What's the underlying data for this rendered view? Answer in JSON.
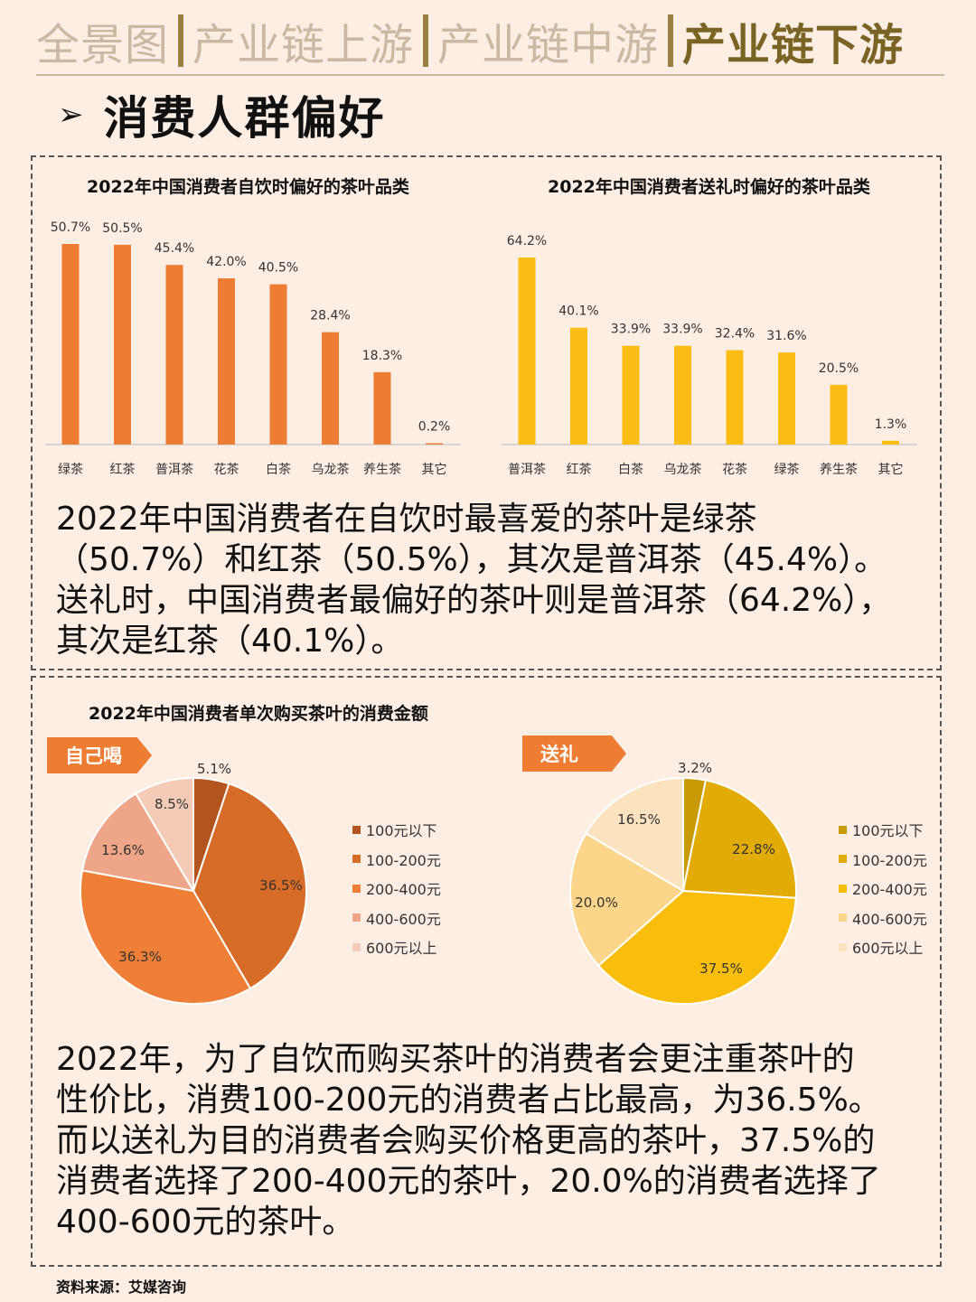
{
  "nav": {
    "tabs": [
      "全景图",
      "产业链上游",
      "产业链中游",
      "产业链下游"
    ],
    "active_index": 3
  },
  "section": {
    "title": "消费人群偏好",
    "arrow": "➢"
  },
  "colors": {
    "bar_left": "#ee7c33",
    "bar_right": "#fbbd14",
    "pie_left": [
      "#b3541e",
      "#d76c28",
      "#ef7f36",
      "#efa688",
      "#f4cbb6"
    ],
    "pie_right": [
      "#c89a06",
      "#e3ab06",
      "#f9be0c",
      "#fbd58a",
      "#fce3bf"
    ],
    "tag_left": "#ee7c33",
    "tag_right": "#ee7c33"
  },
  "chart_data": [
    {
      "type": "bar",
      "title": "2022年中国消费者自饮时偏好的茶叶品类",
      "categories": [
        "绿茶",
        "红茶",
        "普洱茶",
        "花茶",
        "白茶",
        "乌龙茶",
        "养生茶",
        "其它"
      ],
      "values": [
        50.7,
        50.5,
        45.4,
        42.0,
        40.5,
        28.4,
        18.3,
        0.2
      ],
      "labels": [
        "50.7%",
        "50.5%",
        "45.4%",
        "42.0%",
        "40.5%",
        "28.4%",
        "18.3%",
        "0.2%"
      ],
      "unit": "%",
      "ylim": [
        0,
        55
      ],
      "grid": false
    },
    {
      "type": "bar",
      "title": "2022年中国消费者送礼时偏好的茶叶品类",
      "categories": [
        "普洱茶",
        "红茶",
        "白茶",
        "乌龙茶",
        "花茶",
        "绿茶",
        "养生茶",
        "其它"
      ],
      "values": [
        64.2,
        40.1,
        33.9,
        33.9,
        32.4,
        31.6,
        20.5,
        1.3
      ],
      "labels": [
        "64.2%",
        "40.1%",
        "33.9%",
        "33.9%",
        "32.4%",
        "31.6%",
        "20.5%",
        "1.3%"
      ],
      "unit": "%",
      "ylim": [
        0,
        70
      ],
      "grid": false
    },
    {
      "type": "pie",
      "title": "2022年中国消费者单次购买茶叶的消费金额",
      "group": "自己喝",
      "categories": [
        "100元以下",
        "100-200元",
        "200-400元",
        "400-600元",
        "600元以上"
      ],
      "values": [
        5.1,
        36.5,
        36.3,
        13.6,
        8.5
      ],
      "labels": [
        "5.1%",
        "36.5%",
        "36.3%",
        "13.6%",
        "8.5%"
      ],
      "legend_position": "right"
    },
    {
      "type": "pie",
      "group": "送礼",
      "categories": [
        "100元以下",
        "100-200元",
        "200-400元",
        "400-600元",
        "600元以上"
      ],
      "values": [
        3.2,
        22.8,
        37.5,
        20.0,
        16.5
      ],
      "labels": [
        "3.2%",
        "22.8%",
        "37.5%",
        "20.0%",
        "16.5%"
      ],
      "legend_position": "right"
    }
  ],
  "paragraph1": [
    "2022年中国消费者在自饮时最喜爱的茶叶是绿茶",
    "（50.7%）和红茶（50.5%），其次是普洱茶（45.4%）。",
    "送礼时，中国消费者最偏好的茶叶则是普洱茶（64.2%），",
    "其次是红茶（40.1%）。"
  ],
  "paragraph2": [
    "2022年，为了自饮而购买茶叶的消费者会更注重茶叶的",
    "性价比，消费100-200元的消费者占比最高，为36.5%。",
    "而以送礼为目的消费者会购买价格更高的茶叶，37.5%的",
    "消费者选择了200-400元的茶叶，20.0%的消费者选择了",
    "400-600元的茶叶。"
  ],
  "source": "资料来源：艾媒咨询"
}
